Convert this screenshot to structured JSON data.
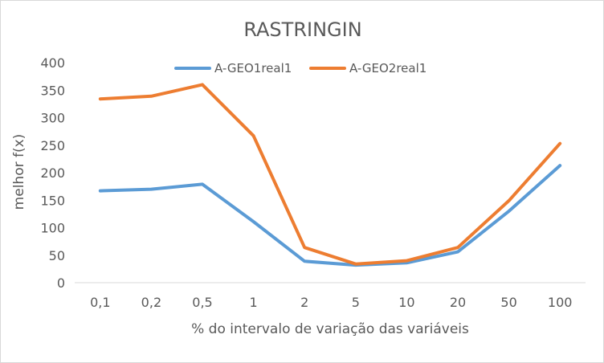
{
  "chart_data": {
    "type": "line",
    "title": "RASTRINGIN",
    "xlabel": "% do intervalo de variação das variáveis",
    "ylabel": "melhor f(x)",
    "categories": [
      "0,1",
      "0,2",
      "0,5",
      "1",
      "2",
      "5",
      "10",
      "20",
      "50",
      "100"
    ],
    "ylim": [
      0,
      400
    ],
    "yticks": [
      0,
      50,
      100,
      150,
      200,
      250,
      300,
      350,
      400
    ],
    "grid": false,
    "legend_position": "top",
    "series": [
      {
        "name": "A-GEO1real1",
        "color": "#5b9bd5",
        "values": [
          167,
          170,
          179,
          111,
          39,
          32,
          36,
          56,
          130,
          213
        ]
      },
      {
        "name": "A-GEO2real1",
        "color": "#ed7d31",
        "values": [
          334,
          339,
          360,
          267,
          64,
          34,
          40,
          64,
          149,
          253
        ]
      }
    ]
  }
}
